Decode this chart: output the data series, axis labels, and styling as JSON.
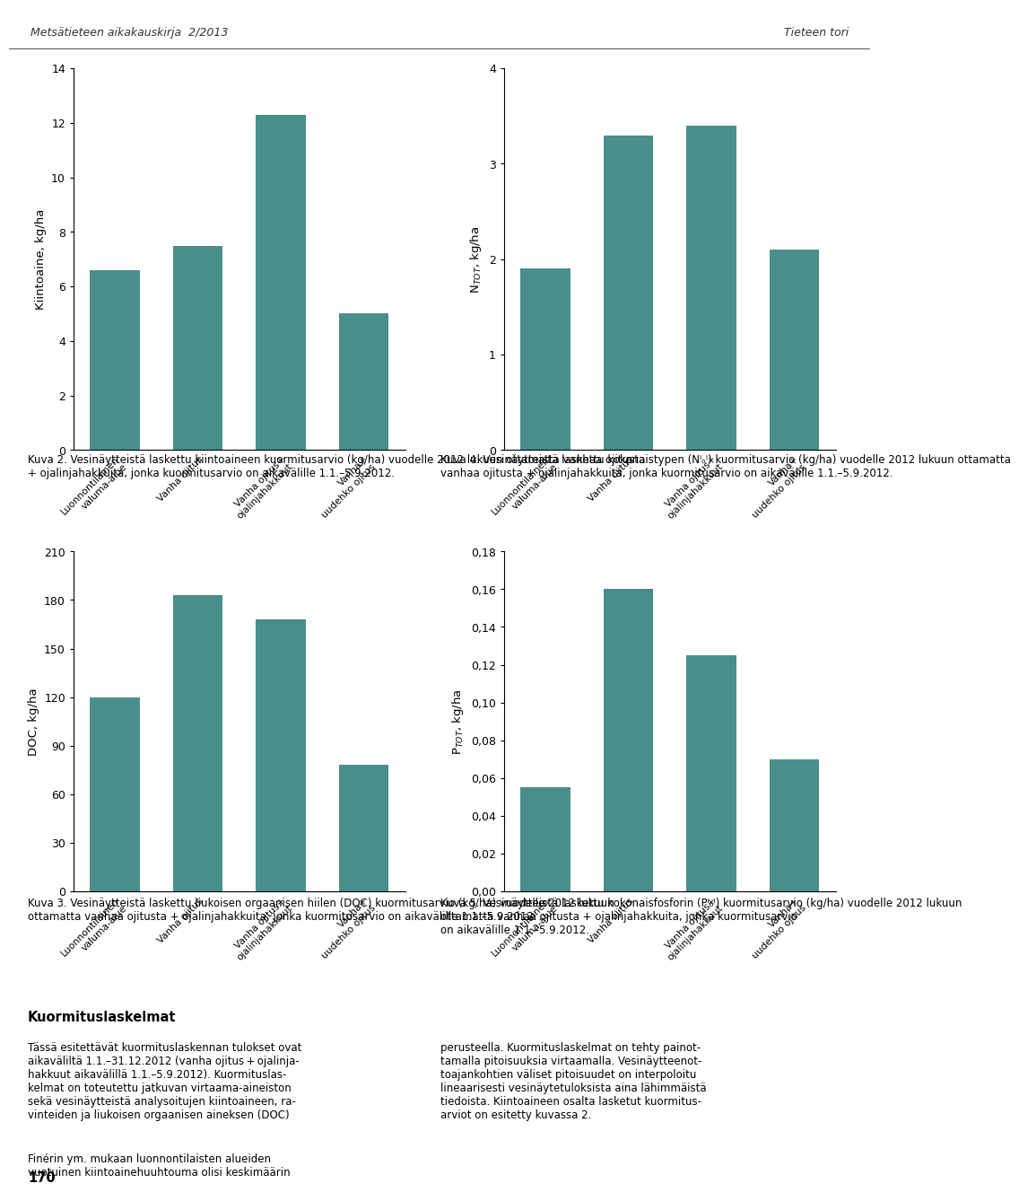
{
  "categories": [
    "Luonnontilainen\nvaluma-alue",
    "Vanha ojitus",
    "Vanha ojitus+\nojalinjahakkuut",
    "Vanha+\nuudehko ojitus"
  ],
  "bar_color": "#4a8e8a",
  "charts": [
    {
      "title": "Kuva 2",
      "ylabel": "Kiintoaine, kg/ha",
      "values": [
        6.6,
        7.5,
        12.3,
        5.0
      ],
      "ylim": [
        0,
        14
      ],
      "yticks": [
        0,
        2,
        4,
        6,
        8,
        10,
        12,
        14
      ],
      "use_comma": false
    },
    {
      "title": "Kuva 4",
      "ylabel": "N$_{TOT}$, kg/ha",
      "values": [
        1.9,
        3.3,
        3.4,
        2.1
      ],
      "ylim": [
        0,
        4
      ],
      "yticks": [
        0,
        1,
        2,
        3,
        4
      ],
      "use_comma": false
    },
    {
      "title": "Kuva 3",
      "ylabel": "DOC, kg/ha",
      "values": [
        120,
        183,
        168,
        78
      ],
      "ylim": [
        0,
        210
      ],
      "yticks": [
        0,
        30,
        60,
        90,
        120,
        150,
        180,
        210
      ],
      "use_comma": false
    },
    {
      "title": "Kuva 5",
      "ylabel": "P$_{TOT}$, kg/ha",
      "values": [
        0.055,
        0.16,
        0.125,
        0.07
      ],
      "ylim": [
        0,
        0.18
      ],
      "yticks": [
        0.0,
        0.02,
        0.04,
        0.06,
        0.08,
        0.1,
        0.12,
        0.14,
        0.16,
        0.18
      ],
      "use_comma": true
    }
  ],
  "page_header_left": "Metsätieteen aikakauskirja  2/2013",
  "page_header_right": "Tieteen tori",
  "page_number": "170",
  "caption2": "Kuva 2. Vesinäytteistä laskettu kiintoaineen kuormitusarvio (kg/ha) vuodelle 2012 lukuun ottamatta vanhaa ojitusta + ojalinjahakkuita, jonka kuormitusarvio on aikavälille 1.1.–5.9.2012.",
  "caption4_line1": "Kuva 4. Vesinäytteistä laskettu kokonaistypen (N",
  "caption4_sub": "TOT",
  "caption4_line2": ") kuormitusarvio (kg/ha) vuodelle 2012 lukuun ottamatta vanhaa ojitusta + ojalinjahakkuita, jonka kuormitusarvio on aikavälille 1.1.–5.9.2012.",
  "caption3": "Kuva 3. Vesinäytteistä laskettu liukoisen orgaanisen hiilen (DOC) kuormitusarvio (kg/ha) vuodelle 2012 lukuun ottamatta vanhaa ojitusta + ojalinjahakkuita, jonka kuormitusarvio on aikavälille 1.1.–5.9.2012.",
  "caption5_line1": "Kuva 5. Vesinäytteistä laskettu kokonaisfosforin (P",
  "caption5_sub": "TOT",
  "caption5_line2": ") kuormitusarvio (kg/ha) vuodelle 2012 lukuun ottamatta vanhaa ojitusta + ojalinjahakkuita, jonka kuormitusarvio on aikavälille 1.1.–5.9.2012.",
  "section_header": "Kuormituslaskelmat",
  "body_left": "Tässä esitettävät kuormituslaskennan tulokset ovat\naikaväliltä 1.1.–31.12.2012 (vanha ojitus + ojalinja-\nhakkuut aikavälillä 1.1.–5.9.2012). Kuormituslas-\nkelmat on toteutettu jatkuvan virtaama-aineiston\nsekä vesinäytteistä analysoitujen kiintoaineen, ra-\nvinteiden ja liukoisen orgaanisen aineksen (DOC)",
  "body_right": "perusteella. Kuormituslaskelmat on tehty painot-\ntamalla pitoisuuksia virtaamalla. Vesinäytteenot-\ntoajankohtien väliset pitoisuudet on interpoloitu\nlineaarisesti vesinäytetuloksista aina lähimmäistä\ntiedoista. Kiintoaineen osalta lasketut kuormitus-\narviot on esitetty kuvassa 2.",
  "body_bottom": "Finérin ym. mukaan luonnontilaisten alueiden\nvuotuinen kiintoainehuuhtouma olisi keskimmärin"
}
